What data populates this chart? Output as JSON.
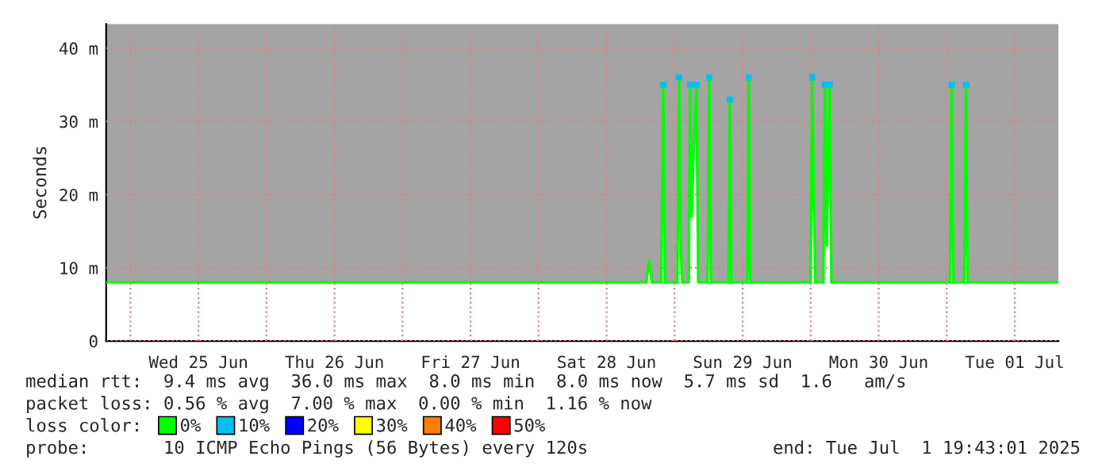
{
  "chart_data": {
    "type": "line",
    "ylabel": "Seconds",
    "x": [
      "2025-06-24T19:43",
      "2025-06-25T08:00",
      "2025-06-25T20:00",
      "2025-06-26T08:00",
      "2025-06-26T20:00",
      "2025-06-27T08:00",
      "2025-06-27T20:00",
      "2025-06-28T08:00",
      "2025-06-28T19:00",
      "2025-06-28T19:30",
      "2025-06-28T20:00",
      "2025-06-28T21:40",
      "2025-06-28T22:00",
      "2025-06-28T22:20",
      "2025-06-29T00:30",
      "2025-06-29T00:47",
      "2025-06-29T01:05",
      "2025-06-29T01:20",
      "2025-06-29T02:30",
      "2025-06-29T02:44",
      "2025-06-29T03:00",
      "2025-06-29T03:20",
      "2025-06-29T03:52",
      "2025-06-29T04:10",
      "2025-06-29T05:50",
      "2025-06-29T06:06",
      "2025-06-29T06:25",
      "2025-06-29T09:30",
      "2025-06-29T09:45",
      "2025-06-29T10:00",
      "2025-06-29T12:50",
      "2025-06-29T13:05",
      "2025-06-29T13:20",
      "2025-06-30T00:00",
      "2025-06-30T00:17",
      "2025-06-30T00:35",
      "2025-06-30T00:50",
      "2025-06-30T02:15",
      "2025-06-30T02:31",
      "2025-06-30T02:50",
      "2025-06-30T03:05",
      "2025-06-30T03:21",
      "2025-06-30T03:40",
      "2025-07-01T00:35",
      "2025-07-01T00:54",
      "2025-07-01T01:10",
      "2025-07-01T03:05",
      "2025-07-01T03:25",
      "2025-07-01T03:40",
      "2025-07-01T12:00",
      "2025-07-01T19:43"
    ],
    "series": [
      {
        "name": "0%",
        "color": "#00ff00",
        "values": [
          8.0,
          8.0,
          8.0,
          8.0,
          8.0,
          8.0,
          8.0,
          8.0,
          8.0,
          11,
          8.0,
          8.0,
          35,
          8.0,
          8.0,
          36,
          13,
          8.0,
          8.0,
          35,
          17,
          25,
          35,
          8.0,
          8.0,
          36,
          8.0,
          8.0,
          33,
          8.0,
          8.0,
          36,
          8.0,
          8.0,
          36,
          18,
          8.0,
          8.0,
          35,
          13,
          24,
          35,
          8.0,
          8.0,
          35,
          8.0,
          8.0,
          35,
          8.0,
          8.0,
          8.0
        ],
        "lower": [
          8.0,
          8.0,
          8.0,
          8.0,
          8.0,
          8.0,
          8.0,
          8.0,
          8.0,
          11,
          8.0,
          8.0,
          35,
          8.0,
          8.0,
          36,
          13,
          8.0,
          8.0,
          35,
          17,
          25,
          35,
          8.0,
          8.0,
          36,
          8.0,
          8.0,
          33,
          8.0,
          8.0,
          36,
          8.0,
          8.0,
          36,
          18,
          8.0,
          8.0,
          35,
          13,
          24,
          35,
          8.0,
          8.0,
          35,
          8.0,
          8.0,
          35,
          8.0,
          8.0,
          8.0
        ],
        "upper": [
          43.3,
          43.3,
          43.3,
          43.3,
          43.3,
          43.3,
          43.3,
          43.3,
          43.3,
          43.3,
          43.3,
          43.3,
          43.3,
          43.3,
          43.3,
          43.3,
          43.3,
          43.3,
          43.3,
          43.3,
          43.3,
          43.3,
          43.3,
          43.3,
          43.3,
          43.3,
          43.3,
          43.3,
          43.3,
          43.3,
          43.3,
          43.3,
          43.3,
          43.3,
          43.3,
          43.3,
          43.3,
          43.3,
          43.3,
          43.3,
          43.3,
          43.3,
          43.3,
          43.3,
          43.3,
          43.3,
          43.3,
          43.3,
          43.3,
          43.3,
          43.3
        ]
      },
      {
        "name": "10%",
        "type": "scatter",
        "marker": "square",
        "color": "#00c0f0",
        "values": [
          null,
          null,
          null,
          null,
          null,
          null,
          null,
          null,
          null,
          null,
          null,
          null,
          35,
          null,
          null,
          36,
          null,
          null,
          null,
          35,
          null,
          null,
          35,
          null,
          null,
          36,
          null,
          null,
          33,
          null,
          null,
          36,
          null,
          null,
          36,
          null,
          null,
          null,
          35,
          null,
          null,
          35,
          null,
          null,
          35,
          null,
          null,
          35,
          null,
          null,
          null
        ]
      },
      {
        "name": "20%",
        "color": "#0000ff",
        "values": [
          null,
          null,
          null,
          null,
          null,
          null,
          null,
          null,
          null,
          null,
          null,
          null,
          null,
          null,
          null,
          null,
          null,
          null,
          null,
          null,
          null,
          null,
          null,
          null,
          null,
          null,
          null,
          null,
          null,
          null,
          null,
          null,
          null,
          null,
          null,
          null,
          null,
          null,
          null,
          null,
          null,
          null,
          null,
          null,
          null,
          null,
          null,
          null,
          null,
          null,
          null
        ]
      },
      {
        "name": "30%",
        "color": "#ffff00",
        "values": [
          null,
          null,
          null,
          null,
          null,
          null,
          null,
          null,
          null,
          null,
          null,
          null,
          null,
          null,
          null,
          null,
          null,
          null,
          null,
          null,
          null,
          null,
          null,
          null,
          null,
          null,
          null,
          null,
          null,
          null,
          null,
          null,
          null,
          null,
          null,
          null,
          null,
          null,
          null,
          null,
          null,
          null,
          null,
          null,
          null,
          null,
          null,
          null,
          null,
          null,
          null
        ]
      },
      {
        "name": "40%",
        "color": "#ff8000",
        "values": [
          null,
          null,
          null,
          null,
          null,
          null,
          null,
          null,
          null,
          null,
          null,
          null,
          null,
          null,
          null,
          null,
          null,
          null,
          null,
          null,
          null,
          null,
          null,
          null,
          null,
          null,
          null,
          null,
          null,
          null,
          null,
          null,
          null,
          null,
          null,
          null,
          null,
          null,
          null,
          null,
          null,
          null,
          null,
          null,
          null,
          null,
          null,
          null,
          null,
          null,
          null
        ]
      },
      {
        "name": "50%",
        "color": "#ff0000",
        "values": [
          null,
          null,
          null,
          null,
          null,
          null,
          null,
          null,
          null,
          null,
          null,
          null,
          null,
          null,
          null,
          null,
          null,
          null,
          null,
          null,
          null,
          null,
          null,
          null,
          null,
          null,
          null,
          null,
          null,
          null,
          null,
          null,
          null,
          null,
          null,
          null,
          null,
          null,
          null,
          null,
          null,
          null,
          null,
          null,
          null,
          null,
          null,
          null,
          null,
          null,
          null
        ]
      }
    ],
    "xlim": [
      "2025-06-24T19:43",
      "2025-07-01T19:43"
    ],
    "xticks": [
      {
        "value": "2025-06-25T00:00",
        "label": null
      },
      {
        "value": "2025-06-25T12:00",
        "label": "Wed 25 Jun"
      },
      {
        "value": "2025-06-26T00:00",
        "label": null
      },
      {
        "value": "2025-06-26T12:00",
        "label": "Thu 26 Jun"
      },
      {
        "value": "2025-06-27T00:00",
        "label": null
      },
      {
        "value": "2025-06-27T12:00",
        "label": "Fri 27 Jun"
      },
      {
        "value": "2025-06-28T00:00",
        "label": null
      },
      {
        "value": "2025-06-28T12:00",
        "label": "Sat 28 Jun"
      },
      {
        "value": "2025-06-29T00:00",
        "label": null
      },
      {
        "value": "2025-06-29T12:00",
        "label": "Sun 29 Jun"
      },
      {
        "value": "2025-06-30T00:00",
        "label": null
      },
      {
        "value": "2025-06-30T12:00",
        "label": "Mon 30 Jun"
      },
      {
        "value": "2025-07-01T00:00",
        "label": null
      },
      {
        "value": "2025-07-01T12:00",
        "label": "Tue 01 Jul"
      }
    ],
    "ylim": [
      0,
      43.3
    ],
    "yticks": [
      0,
      {
        "value": 10,
        "label": "10 m"
      },
      {
        "value": 20,
        "label": "20 m"
      },
      {
        "value": 30,
        "label": "30 m"
      },
      {
        "value": 40,
        "label": "40 m"
      }
    ],
    "grid": true,
    "legend": "bottom",
    "legend_title": "loss color:",
    "annotations": [
      "median rtt:  9.4 ms avg  36.0 ms max  8.0 ms min  8.0 ms now  5.7 ms sd  1.6   am/s",
      "packet loss: 0.56 % avg  7.00 % max  0.00 % min  1.16 % now",
      "probe:       10 ICMP Echo Pings (56 Bytes) every 120s",
      "end: Tue Jul  1 19:43:01 2025"
    ]
  }
}
